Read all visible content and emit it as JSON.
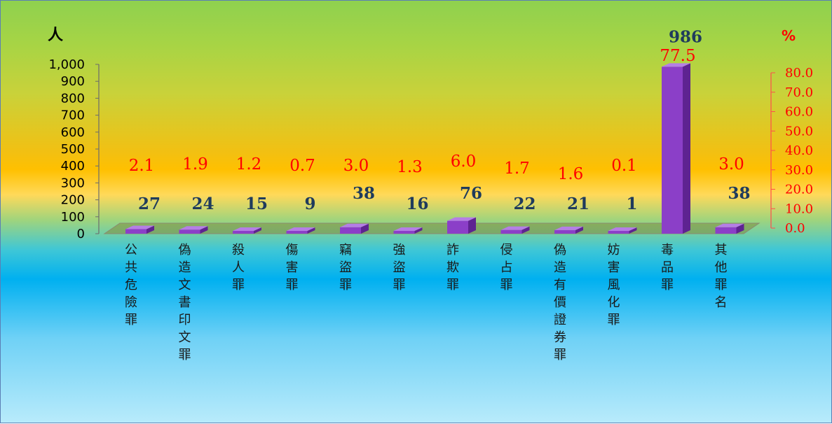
{
  "chart_data": {
    "type": "bar",
    "y_left_unit": "人",
    "y_right_unit": "%",
    "y_left_ticks": [
      "0",
      "100",
      "200",
      "300",
      "400",
      "500",
      "600",
      "700",
      "800",
      "900",
      "1,000"
    ],
    "y_right_ticks": [
      "0.0",
      "10.0",
      "20.0",
      "30.0",
      "40.0",
      "50.0",
      "60.0",
      "70.0",
      "80.0"
    ],
    "ylim_left": [
      0,
      1000
    ],
    "ylim_right": [
      0,
      80
    ],
    "categories": [
      "公共危險罪",
      "偽造文書印文罪",
      "殺人罪",
      "傷害罪",
      "竊盜罪",
      "強盜罪",
      "詐欺罪",
      "侵占罪",
      "偽造有價證券罪",
      "妨害風化罪",
      "毒品罪",
      "其他罪名"
    ],
    "count_labels": [
      "27",
      "24",
      "15",
      "9",
      "38",
      "16",
      "76",
      "22",
      "21",
      "1",
      "986",
      "38"
    ],
    "percent_labels": [
      "2.1",
      "1.9",
      "1.2",
      "0.7",
      "3.0",
      "1.3",
      "6.0",
      "1.7",
      "1.6",
      "0.1",
      "77.5",
      "3.0"
    ],
    "counts": [
      27,
      24,
      15,
      9,
      38,
      16,
      76,
      22,
      21,
      1,
      986,
      38
    ],
    "percents": [
      2.1,
      1.9,
      1.2,
      0.7,
      3.0,
      1.3,
      6.0,
      1.7,
      1.6,
      0.1,
      77.5,
      3.0
    ],
    "bar_color": "#8b3fc8",
    "bar_side_color": "#5e2391",
    "bar_top_color": "#b57ee6",
    "floor_color": "#7f8c3a",
    "count_label_color": "#1f3b5c",
    "percent_label_color": "#ff0000",
    "grid": false,
    "legend": "none"
  }
}
